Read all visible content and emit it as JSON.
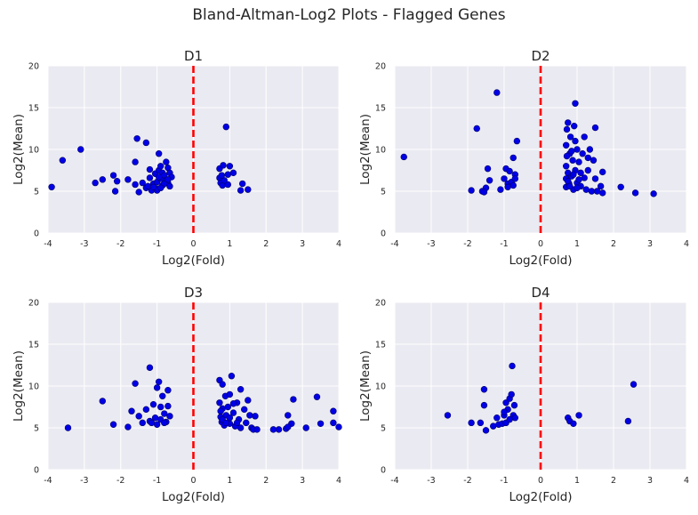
{
  "figure": {
    "title": "Bland-Altman-Log2 Plots - Flagged Genes"
  },
  "style": {
    "plot_bg": "#EAEAF2",
    "grid_color": "#ffffff",
    "point_color": "#0000e6",
    "point_edge": "#00006b",
    "ref_line_color": "#ff0000"
  },
  "chart_data": [
    {
      "type": "scatter",
      "title": "D1",
      "xlabel": "Log2(Fold)",
      "ylabel": "Log2(Mean)",
      "xlim": [
        -4,
        4
      ],
      "ylim": [
        0,
        20
      ],
      "xticks": [
        "-4",
        "-3",
        "-2",
        "-1",
        "0",
        "1",
        "2",
        "3",
        "4"
      ],
      "yticks": [
        "0",
        "5",
        "10",
        "15",
        "20"
      ],
      "grid": true,
      "reference_line": {
        "x": 0,
        "style": "dashed",
        "color": "#ff0000"
      },
      "points": [
        [
          -3.9,
          5.5
        ],
        [
          -3.6,
          8.7
        ],
        [
          -3.1,
          10.0
        ],
        [
          -2.7,
          6.0
        ],
        [
          -2.5,
          6.4
        ],
        [
          -2.2,
          6.9
        ],
        [
          -2.1,
          6.2
        ],
        [
          -2.15,
          5.0
        ],
        [
          -1.8,
          6.4
        ],
        [
          -1.6,
          8.5
        ],
        [
          -1.55,
          11.3
        ],
        [
          -1.6,
          5.8
        ],
        [
          -1.5,
          4.9
        ],
        [
          -1.3,
          10.8
        ],
        [
          -1.4,
          6.0
        ],
        [
          -1.3,
          5.4
        ],
        [
          -1.2,
          7.6
        ],
        [
          -1.2,
          6.6
        ],
        [
          -1.15,
          5.1
        ],
        [
          -1.1,
          5.9
        ],
        [
          -1.05,
          7.1
        ],
        [
          -1.0,
          6.1
        ],
        [
          -1.0,
          5.3
        ],
        [
          -0.95,
          7.5
        ],
        [
          -0.95,
          9.5
        ],
        [
          -0.9,
          6.5
        ],
        [
          -0.9,
          8.0
        ],
        [
          -0.85,
          5.7
        ],
        [
          -0.85,
          7.2
        ],
        [
          -0.8,
          6.9
        ],
        [
          -0.75,
          8.5
        ],
        [
          -0.75,
          6.3
        ],
        [
          -0.7,
          7.8
        ],
        [
          -0.7,
          6.0
        ],
        [
          -0.65,
          7.2
        ],
        [
          -0.65,
          5.6
        ],
        [
          -0.6,
          6.7
        ],
        [
          -1.0,
          5.1
        ],
        [
          -1.25,
          5.6
        ],
        [
          -0.95,
          6.7
        ],
        [
          -0.8,
          5.9
        ],
        [
          -1.1,
          5.5
        ],
        [
          -0.9,
          5.4
        ],
        [
          -0.7,
          6.4
        ],
        [
          0.72,
          6.6
        ],
        [
          0.72,
          7.7
        ],
        [
          0.75,
          6.0
        ],
        [
          0.8,
          5.7
        ],
        [
          0.82,
          8.1
        ],
        [
          0.9,
          12.7
        ],
        [
          0.95,
          7.0
        ],
        [
          0.95,
          5.8
        ],
        [
          1.0,
          8.0
        ],
        [
          1.1,
          7.2
        ],
        [
          1.3,
          5.1
        ],
        [
          1.35,
          5.9
        ],
        [
          1.5,
          5.2
        ],
        [
          0.85,
          6.3
        ],
        [
          0.78,
          6.9
        ]
      ]
    },
    {
      "type": "scatter",
      "title": "D2",
      "xlabel": "Log2(Fold)",
      "ylabel": "Log2(Mean)",
      "xlim": [
        -4,
        4
      ],
      "ylim": [
        0,
        20
      ],
      "xticks": [
        "-4",
        "-3",
        "-2",
        "-1",
        "0",
        "1",
        "2",
        "3",
        "4"
      ],
      "yticks": [
        "0",
        "5",
        "10",
        "15",
        "20"
      ],
      "grid": true,
      "reference_line": {
        "x": 0,
        "style": "dashed",
        "color": "#ff0000"
      },
      "points": [
        [
          -3.75,
          9.1
        ],
        [
          -1.9,
          5.1
        ],
        [
          -1.75,
          12.5
        ],
        [
          -1.6,
          5.0
        ],
        [
          -1.5,
          5.4
        ],
        [
          -1.45,
          7.7
        ],
        [
          -1.4,
          6.3
        ],
        [
          -1.55,
          4.9
        ],
        [
          -1.2,
          16.8
        ],
        [
          -1.1,
          5.2
        ],
        [
          -1.0,
          6.5
        ],
        [
          -0.95,
          7.7
        ],
        [
          -0.9,
          5.9
        ],
        [
          -0.85,
          7.4
        ],
        [
          -0.8,
          6.1
        ],
        [
          -0.75,
          9.0
        ],
        [
          -0.75,
          5.7
        ],
        [
          -0.7,
          7.0
        ],
        [
          -0.65,
          11.0
        ],
        [
          -0.7,
          6.5
        ],
        [
          -0.9,
          5.5
        ],
        [
          0.7,
          5.5
        ],
        [
          0.7,
          6.5
        ],
        [
          0.7,
          8.0
        ],
        [
          0.7,
          10.5
        ],
        [
          0.72,
          12.4
        ],
        [
          0.75,
          13.2
        ],
        [
          0.75,
          7.2
        ],
        [
          0.78,
          5.9
        ],
        [
          0.8,
          9.5
        ],
        [
          0.82,
          11.5
        ],
        [
          0.85,
          6.8
        ],
        [
          0.88,
          8.7
        ],
        [
          0.9,
          5.2
        ],
        [
          0.92,
          12.8
        ],
        [
          0.95,
          7.5
        ],
        [
          0.95,
          15.5
        ],
        [
          1.0,
          10.0
        ],
        [
          1.0,
          6.0
        ],
        [
          1.05,
          8.5
        ],
        [
          1.1,
          5.6
        ],
        [
          1.15,
          9.5
        ],
        [
          1.2,
          6.6
        ],
        [
          1.2,
          11.5
        ],
        [
          1.25,
          5.2
        ],
        [
          1.3,
          7.5
        ],
        [
          1.35,
          10.0
        ],
        [
          1.4,
          5.0
        ],
        [
          1.45,
          8.7
        ],
        [
          1.5,
          6.5
        ],
        [
          1.5,
          12.6
        ],
        [
          1.55,
          5.0
        ],
        [
          1.65,
          5.6
        ],
        [
          1.7,
          4.8
        ],
        [
          1.7,
          7.3
        ],
        [
          2.2,
          5.5
        ],
        [
          2.6,
          4.8
        ],
        [
          3.1,
          4.7
        ],
        [
          0.75,
          6.2
        ],
        [
          0.8,
          5.6
        ],
        [
          0.85,
          9.8
        ],
        [
          0.9,
          7.0
        ],
        [
          1.0,
          5.4
        ],
        [
          1.1,
          7.2
        ],
        [
          1.3,
          9.0
        ],
        [
          0.95,
          11.0
        ],
        [
          1.05,
          6.4
        ],
        [
          0.72,
          9.2
        ]
      ]
    },
    {
      "type": "scatter",
      "title": "D3",
      "xlabel": "Log2(Fold)",
      "ylabel": "Log2(Mean)",
      "xlim": [
        -4,
        4
      ],
      "ylim": [
        0,
        20
      ],
      "xticks": [
        "-4",
        "-3",
        "-2",
        "-1",
        "0",
        "1",
        "2",
        "3",
        "4"
      ],
      "yticks": [
        "0",
        "5",
        "10",
        "15",
        "20"
      ],
      "grid": true,
      "reference_line": {
        "x": 0,
        "style": "dashed",
        "color": "#ff0000"
      },
      "points": [
        [
          -3.45,
          5.0
        ],
        [
          -2.5,
          8.2
        ],
        [
          -2.2,
          5.4
        ],
        [
          -1.8,
          5.1
        ],
        [
          -1.7,
          7.0
        ],
        [
          -1.6,
          10.3
        ],
        [
          -1.5,
          6.4
        ],
        [
          -1.4,
          5.6
        ],
        [
          -1.3,
          7.2
        ],
        [
          -1.2,
          12.2
        ],
        [
          -1.2,
          5.8
        ],
        [
          -1.1,
          7.8
        ],
        [
          -1.05,
          6.2
        ],
        [
          -1.0,
          9.8
        ],
        [
          -1.0,
          5.4
        ],
        [
          -0.95,
          10.5
        ],
        [
          -0.9,
          7.5
        ],
        [
          -0.9,
          6.0
        ],
        [
          -0.85,
          8.8
        ],
        [
          -0.8,
          6.7
        ],
        [
          -0.75,
          5.7
        ],
        [
          -0.7,
          7.6
        ],
        [
          -0.7,
          9.5
        ],
        [
          -0.65,
          6.4
        ],
        [
          -1.15,
          5.6
        ],
        [
          -0.8,
          5.6
        ],
        [
          0.72,
          10.7
        ],
        [
          0.72,
          8.0
        ],
        [
          0.75,
          6.3
        ],
        [
          0.78,
          5.7
        ],
        [
          0.8,
          7.3
        ],
        [
          0.8,
          10.2
        ],
        [
          0.85,
          5.3
        ],
        [
          0.88,
          8.8
        ],
        [
          0.9,
          6.5
        ],
        [
          0.95,
          7.5
        ],
        [
          1.0,
          5.5
        ],
        [
          1.0,
          9.0
        ],
        [
          1.05,
          11.2
        ],
        [
          1.1,
          6.8
        ],
        [
          1.15,
          5.2
        ],
        [
          1.2,
          8.0
        ],
        [
          1.25,
          6.0
        ],
        [
          1.3,
          9.6
        ],
        [
          1.3,
          5.0
        ],
        [
          1.4,
          7.2
        ],
        [
          1.45,
          5.6
        ],
        [
          1.5,
          8.3
        ],
        [
          1.55,
          6.5
        ],
        [
          1.6,
          5.0
        ],
        [
          1.65,
          4.8
        ],
        [
          1.7,
          6.4
        ],
        [
          1.75,
          4.8
        ],
        [
          2.2,
          4.8
        ],
        [
          2.35,
          4.8
        ],
        [
          2.55,
          4.9
        ],
        [
          2.6,
          6.5
        ],
        [
          2.7,
          5.5
        ],
        [
          2.75,
          8.4
        ],
        [
          3.1,
          5.0
        ],
        [
          3.4,
          8.7
        ],
        [
          3.5,
          5.5
        ],
        [
          3.85,
          7.0
        ],
        [
          3.85,
          5.6
        ],
        [
          4.0,
          5.1
        ],
        [
          0.8,
          6.0
        ],
        [
          0.9,
          5.6
        ],
        [
          1.1,
          7.9
        ],
        [
          1.0,
          6.2
        ],
        [
          1.2,
          5.6
        ],
        [
          0.75,
          7.0
        ],
        [
          2.6,
          5.1
        ]
      ]
    },
    {
      "type": "scatter",
      "title": "D4",
      "xlabel": "Log2(Fold)",
      "ylabel": "Log2(Mean)",
      "xlim": [
        -4,
        4
      ],
      "ylim": [
        0,
        20
      ],
      "xticks": [
        "-4",
        "-3",
        "-2",
        "-1",
        "0",
        "1",
        "2",
        "3",
        "4"
      ],
      "yticks": [
        "0",
        "5",
        "10",
        "15",
        "20"
      ],
      "grid": true,
      "reference_line": {
        "x": 0,
        "style": "dashed",
        "color": "#ff0000"
      },
      "points": [
        [
          -2.55,
          6.5
        ],
        [
          -1.9,
          5.6
        ],
        [
          -1.65,
          5.6
        ],
        [
          -1.55,
          9.6
        ],
        [
          -1.55,
          7.7
        ],
        [
          -1.5,
          4.7
        ],
        [
          -1.3,
          5.2
        ],
        [
          -1.2,
          6.2
        ],
        [
          -1.15,
          5.4
        ],
        [
          -1.05,
          5.5
        ],
        [
          -1.0,
          6.5
        ],
        [
          -0.95,
          8.0
        ],
        [
          -0.95,
          5.6
        ],
        [
          -0.9,
          7.2
        ],
        [
          -0.85,
          6.0
        ],
        [
          -0.85,
          8.5
        ],
        [
          -0.8,
          9.0
        ],
        [
          -0.78,
          12.4
        ],
        [
          -0.75,
          6.5
        ],
        [
          -0.72,
          7.7
        ],
        [
          -0.7,
          6.2
        ],
        [
          -1.0,
          6.9
        ],
        [
          0.75,
          6.2
        ],
        [
          0.8,
          5.8
        ],
        [
          0.9,
          5.5
        ],
        [
          1.05,
          6.5
        ],
        [
          2.4,
          5.8
        ],
        [
          2.55,
          10.2
        ]
      ]
    }
  ]
}
